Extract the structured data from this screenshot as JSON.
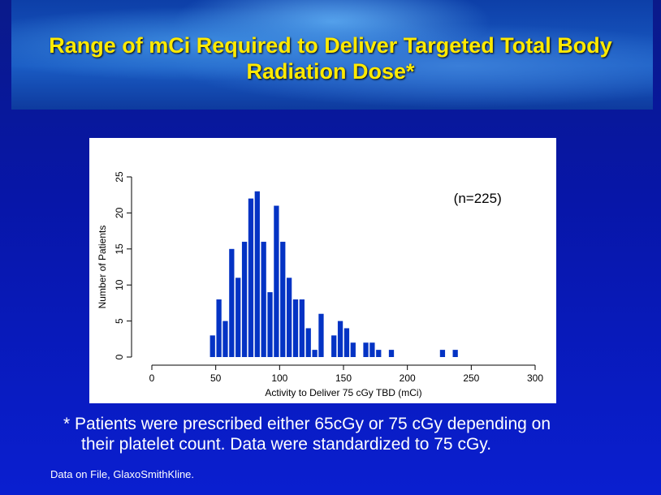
{
  "title_line1": "Range of mCi Required to Deliver Targeted Total Body",
  "title_line2": "Radiation Dose*",
  "footnote_line1": "* Patients were prescribed either 65cGy or 75 cGy depending on",
  "footnote_line2": "their platelet count.  Data were standardized to 75 cGy.",
  "source": "Data on File, GlaxoSmithKline.",
  "chart_data": {
    "type": "bar",
    "title": "",
    "annotation": "(n=225)",
    "xlabel": "Activity to Deliver 75 cGy TBD (mCi)",
    "ylabel": "Number of Patients",
    "xlim": [
      0,
      300
    ],
    "ylim": [
      0,
      25
    ],
    "xticks": [
      "0",
      "50",
      "100",
      "150",
      "200",
      "250",
      "300"
    ],
    "yticks": [
      "0",
      "5",
      "10",
      "15",
      "20",
      "25"
    ],
    "bin_width": 5,
    "bin_starts": [
      45,
      50,
      55,
      60,
      65,
      70,
      75,
      80,
      85,
      90,
      95,
      100,
      105,
      110,
      115,
      120,
      125,
      130,
      135,
      140,
      145,
      150,
      155,
      160,
      165,
      170,
      175,
      180,
      185,
      225,
      235
    ],
    "values": [
      3,
      8,
      5,
      15,
      11,
      16,
      22,
      23,
      16,
      9,
      21,
      16,
      11,
      8,
      8,
      4,
      1,
      6,
      0,
      3,
      5,
      4,
      2,
      0,
      2,
      2,
      1,
      0,
      1,
      1,
      1
    ],
    "bar_color": "#0433c4"
  }
}
